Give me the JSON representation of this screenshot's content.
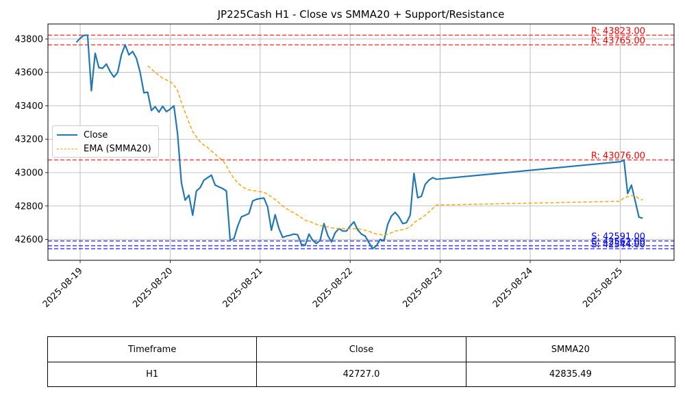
{
  "chart_data": {
    "type": "line",
    "title": "JP225Cash H1 - Close vs SMMA20 + Support/Resistance",
    "xlabel": "",
    "ylabel": "",
    "x_ticks": [
      "2025-08-19",
      "2025-08-20",
      "2025-08-21",
      "2025-08-22",
      "2025-08-23",
      "2025-08-24",
      "2025-08-25"
    ],
    "y_ticks": [
      42600,
      42800,
      43000,
      43200,
      43400,
      43600,
      43800
    ],
    "ylim": [
      42475,
      43890
    ],
    "grid": true,
    "legend_position": "center-left",
    "series": [
      {
        "name": "Close",
        "color": "#1f77b4",
        "style": "solid",
        "points": [
          [
            "2025-08-18 23:00",
            43780
          ],
          [
            "2025-08-19 00:00",
            43805
          ],
          [
            "2025-08-19 01:00",
            43822
          ],
          [
            "2025-08-19 02:00",
            43823
          ],
          [
            "2025-08-19 03:00",
            43490
          ],
          [
            "2025-08-19 04:00",
            43715
          ],
          [
            "2025-08-19 05:00",
            43628
          ],
          [
            "2025-08-19 06:00",
            43625
          ],
          [
            "2025-08-19 07:00",
            43650
          ],
          [
            "2025-08-19 08:00",
            43605
          ],
          [
            "2025-08-19 09:00",
            43572
          ],
          [
            "2025-08-19 10:00",
            43600
          ],
          [
            "2025-08-19 11:00",
            43705
          ],
          [
            "2025-08-19 12:00",
            43765
          ],
          [
            "2025-08-19 13:00",
            43705
          ],
          [
            "2025-08-19 14:00",
            43725
          ],
          [
            "2025-08-19 15:00",
            43685
          ],
          [
            "2025-08-19 16:00",
            43600
          ],
          [
            "2025-08-19 17:00",
            43478
          ],
          [
            "2025-08-19 18:00",
            43482
          ],
          [
            "2025-08-19 19:00",
            43372
          ],
          [
            "2025-08-19 20:00",
            43395
          ],
          [
            "2025-08-19 21:00",
            43362
          ],
          [
            "2025-08-19 22:00",
            43398
          ],
          [
            "2025-08-19 23:00",
            43365
          ],
          [
            "2025-08-20 00:00",
            43380
          ],
          [
            "2025-08-20 01:00",
            43400
          ],
          [
            "2025-08-20 02:00",
            43230
          ],
          [
            "2025-08-20 03:00",
            42940
          ],
          [
            "2025-08-20 04:00",
            42835
          ],
          [
            "2025-08-20 05:00",
            42865
          ],
          [
            "2025-08-20 06:00",
            42745
          ],
          [
            "2025-08-20 07:00",
            42890
          ],
          [
            "2025-08-20 08:00",
            42910
          ],
          [
            "2025-08-20 09:00",
            42955
          ],
          [
            "2025-08-20 10:00",
            42970
          ],
          [
            "2025-08-20 11:00",
            42985
          ],
          [
            "2025-08-20 12:00",
            42925
          ],
          [
            "2025-08-20 13:00",
            42915
          ],
          [
            "2025-08-20 14:00",
            42905
          ],
          [
            "2025-08-20 15:00",
            42890
          ],
          [
            "2025-08-20 16:00",
            42595
          ],
          [
            "2025-08-20 17:00",
            42605
          ],
          [
            "2025-08-20 18:00",
            42680
          ],
          [
            "2025-08-20 19:00",
            42735
          ],
          [
            "2025-08-20 20:00",
            42745
          ],
          [
            "2025-08-20 21:00",
            42755
          ],
          [
            "2025-08-20 22:00",
            42830
          ],
          [
            "2025-08-20 23:00",
            42840
          ],
          [
            "2025-08-21 00:00",
            42845
          ],
          [
            "2025-08-21 01:00",
            42848
          ],
          [
            "2025-08-21 02:00",
            42795
          ],
          [
            "2025-08-21 03:00",
            42655
          ],
          [
            "2025-08-21 04:00",
            42748
          ],
          [
            "2025-08-21 05:00",
            42665
          ],
          [
            "2025-08-21 06:00",
            42612
          ],
          [
            "2025-08-21 07:00",
            42620
          ],
          [
            "2025-08-21 08:00",
            42625
          ],
          [
            "2025-08-21 09:00",
            42632
          ],
          [
            "2025-08-21 10:00",
            42628
          ],
          [
            "2025-08-21 11:00",
            42570
          ],
          [
            "2025-08-21 12:00",
            42565
          ],
          [
            "2025-08-21 13:00",
            42632
          ],
          [
            "2025-08-21 14:00",
            42595
          ],
          [
            "2025-08-21 15:00",
            42575
          ],
          [
            "2025-08-21 16:00",
            42595
          ],
          [
            "2025-08-21 17:00",
            42695
          ],
          [
            "2025-08-21 18:00",
            42625
          ],
          [
            "2025-08-21 19:00",
            42585
          ],
          [
            "2025-08-21 20:00",
            42640
          ],
          [
            "2025-08-21 21:00",
            42665
          ],
          [
            "2025-08-21 22:00",
            42650
          ],
          [
            "2025-08-21 23:00",
            42650
          ],
          [
            "2025-08-22 00:00",
            42680
          ],
          [
            "2025-08-22 01:00",
            42705
          ],
          [
            "2025-08-22 02:00",
            42658
          ],
          [
            "2025-08-22 03:00",
            42632
          ],
          [
            "2025-08-22 04:00",
            42620
          ],
          [
            "2025-08-22 05:00",
            42580
          ],
          [
            "2025-08-22 06:00",
            42545
          ],
          [
            "2025-08-22 07:00",
            42562
          ],
          [
            "2025-08-22 08:00",
            42600
          ],
          [
            "2025-08-22 09:00",
            42592
          ],
          [
            "2025-08-22 10:00",
            42690
          ],
          [
            "2025-08-22 11:00",
            42740
          ],
          [
            "2025-08-22 12:00",
            42762
          ],
          [
            "2025-08-22 13:00",
            42735
          ],
          [
            "2025-08-22 14:00",
            42695
          ],
          [
            "2025-08-22 15:00",
            42700
          ],
          [
            "2025-08-22 16:00",
            42745
          ],
          [
            "2025-08-22 17:00",
            42995
          ],
          [
            "2025-08-22 18:00",
            42850
          ],
          [
            "2025-08-22 19:00",
            42858
          ],
          [
            "2025-08-22 20:00",
            42930
          ],
          [
            "2025-08-22 21:00",
            42955
          ],
          [
            "2025-08-22 22:00",
            42970
          ],
          [
            "2025-08-22 23:00",
            42960
          ],
          [
            "2025-08-25 00:00",
            43065
          ],
          [
            "2025-08-25 01:00",
            43075
          ],
          [
            "2025-08-25 02:00",
            42875
          ],
          [
            "2025-08-25 03:00",
            42925
          ],
          [
            "2025-08-25 04:00",
            42830
          ],
          [
            "2025-08-25 05:00",
            42733
          ],
          [
            "2025-08-25 06:00",
            42727
          ]
        ]
      },
      {
        "name": "EMA (SMMA20)",
        "color": "#ffa500",
        "style": "dashed",
        "points": [
          [
            "2025-08-19 18:00",
            43640
          ],
          [
            "2025-08-19 20:00",
            43600
          ],
          [
            "2025-08-19 22:00",
            43565
          ],
          [
            "2025-08-20 00:00",
            43545
          ],
          [
            "2025-08-20 01:00",
            43525
          ],
          [
            "2025-08-20 02:00",
            43490
          ],
          [
            "2025-08-20 03:00",
            43420
          ],
          [
            "2025-08-20 04:00",
            43360
          ],
          [
            "2025-08-20 05:00",
            43300
          ],
          [
            "2025-08-20 06:00",
            43245
          ],
          [
            "2025-08-20 07:00",
            43215
          ],
          [
            "2025-08-20 08:00",
            43185
          ],
          [
            "2025-08-20 09:00",
            43165
          ],
          [
            "2025-08-20 10:00",
            43150
          ],
          [
            "2025-08-20 11:00",
            43130
          ],
          [
            "2025-08-20 12:00",
            43110
          ],
          [
            "2025-08-20 13:00",
            43090
          ],
          [
            "2025-08-20 14:00",
            43075
          ],
          [
            "2025-08-20 15:00",
            43040
          ],
          [
            "2025-08-20 16:00",
            43000
          ],
          [
            "2025-08-20 17:00",
            42965
          ],
          [
            "2025-08-20 18:00",
            42940
          ],
          [
            "2025-08-20 19:00",
            42920
          ],
          [
            "2025-08-20 20:00",
            42905
          ],
          [
            "2025-08-20 21:00",
            42897
          ],
          [
            "2025-08-20 22:00",
            42892
          ],
          [
            "2025-08-20 23:00",
            42890
          ],
          [
            "2025-08-21 00:00",
            42886
          ],
          [
            "2025-08-21 01:00",
            42882
          ],
          [
            "2025-08-21 02:00",
            42870
          ],
          [
            "2025-08-21 03:00",
            42855
          ],
          [
            "2025-08-21 04:00",
            42838
          ],
          [
            "2025-08-21 05:00",
            42820
          ],
          [
            "2025-08-21 06:00",
            42800
          ],
          [
            "2025-08-21 07:00",
            42785
          ],
          [
            "2025-08-21 08:00",
            42770
          ],
          [
            "2025-08-21 09:00",
            42760
          ],
          [
            "2025-08-21 10:00",
            42745
          ],
          [
            "2025-08-21 11:00",
            42730
          ],
          [
            "2025-08-21 12:00",
            42715
          ],
          [
            "2025-08-21 13:00",
            42708
          ],
          [
            "2025-08-21 14:00",
            42700
          ],
          [
            "2025-08-21 15:00",
            42690
          ],
          [
            "2025-08-21 16:00",
            42682
          ],
          [
            "2025-08-21 17:00",
            42680
          ],
          [
            "2025-08-21 18:00",
            42675
          ],
          [
            "2025-08-21 19:00",
            42670
          ],
          [
            "2025-08-21 20:00",
            42667
          ],
          [
            "2025-08-21 21:00",
            42665
          ],
          [
            "2025-08-21 22:00",
            42664
          ],
          [
            "2025-08-21 23:00",
            42663
          ],
          [
            "2025-08-22 00:00",
            42664
          ],
          [
            "2025-08-22 01:00",
            42665
          ],
          [
            "2025-08-22 02:00",
            42663
          ],
          [
            "2025-08-22 03:00",
            42660
          ],
          [
            "2025-08-22 04:00",
            42655
          ],
          [
            "2025-08-22 05:00",
            42648
          ],
          [
            "2025-08-22 06:00",
            42640
          ],
          [
            "2025-08-22 07:00",
            42632
          ],
          [
            "2025-08-22 08:00",
            42630
          ],
          [
            "2025-08-22 09:00",
            42625
          ],
          [
            "2025-08-22 10:00",
            42630
          ],
          [
            "2025-08-22 11:00",
            42640
          ],
          [
            "2025-08-22 12:00",
            42650
          ],
          [
            "2025-08-22 13:00",
            42655
          ],
          [
            "2025-08-22 14:00",
            42658
          ],
          [
            "2025-08-22 15:00",
            42665
          ],
          [
            "2025-08-22 16:00",
            42675
          ],
          [
            "2025-08-22 17:00",
            42700
          ],
          [
            "2025-08-22 18:00",
            42715
          ],
          [
            "2025-08-22 19:00",
            42728
          ],
          [
            "2025-08-22 20:00",
            42745
          ],
          [
            "2025-08-22 21:00",
            42765
          ],
          [
            "2025-08-22 22:00",
            42785
          ],
          [
            "2025-08-22 23:00",
            42806
          ],
          [
            "2025-08-25 00:00",
            42828
          ],
          [
            "2025-08-25 01:00",
            42850
          ],
          [
            "2025-08-25 02:00",
            42855
          ],
          [
            "2025-08-25 03:00",
            42862
          ],
          [
            "2025-08-25 04:00",
            42860
          ],
          [
            "2025-08-25 05:00",
            42845
          ],
          [
            "2025-08-25 06:00",
            42835
          ]
        ]
      }
    ],
    "levels": [
      {
        "kind": "resistance",
        "value": 43823,
        "label": "R: 43823.00",
        "color": "#ff0000"
      },
      {
        "kind": "resistance",
        "value": 43765,
        "label": "R: 43765.00",
        "color": "#ff0000"
      },
      {
        "kind": "resistance",
        "value": 43076,
        "label": "R: 43076.00",
        "color": "#ff0000"
      },
      {
        "kind": "support",
        "value": 42591,
        "label": "S: 42591.00",
        "color": "#0000ff"
      },
      {
        "kind": "support",
        "value": 42562,
        "label": "S: 42562.00",
        "color": "#0000ff"
      },
      {
        "kind": "support",
        "value": 42544,
        "label": "S: 42544.00",
        "color": "#0000ff"
      }
    ]
  },
  "table": {
    "headers": [
      "Timeframe",
      "Close",
      "SMMA20"
    ],
    "rows": [
      [
        "H1",
        "42727.0",
        "42835.49"
      ]
    ]
  }
}
